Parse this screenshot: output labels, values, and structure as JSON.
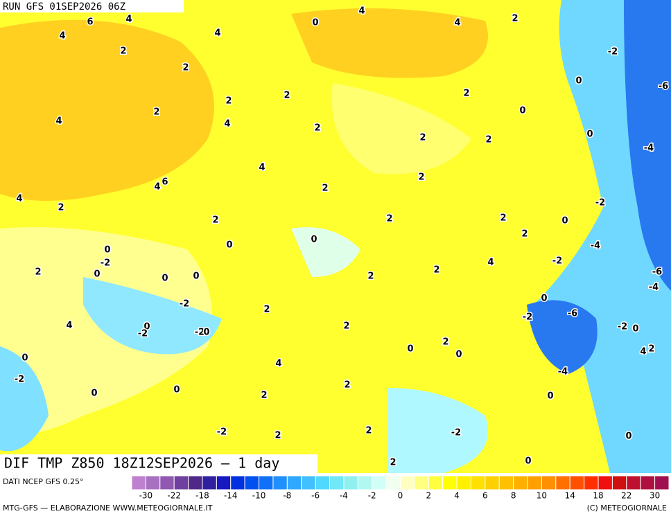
{
  "header": {
    "run": "RUN GFS 01SEP2026 06Z",
    "field": "DIF TMP Z850 18Z12SEP2026 — 1 day"
  },
  "map": {
    "contour_labels": [
      "6",
      "4",
      "4",
      "4",
      "0",
      "4",
      "4",
      "2",
      "2",
      "2",
      "-2",
      "0",
      "-6",
      "2",
      "2",
      "2",
      "2",
      "0",
      "4",
      "4",
      "2",
      "0",
      "2",
      "2",
      "-4",
      "4",
      "2",
      "6",
      "4",
      "2",
      "4",
      "2",
      "-2",
      "2",
      "2",
      "2",
      "0",
      "2",
      "0",
      "0",
      "-4",
      "0",
      "-2",
      "-2",
      "4",
      "2",
      "0",
      "2",
      "-6",
      "0",
      "0",
      "2",
      "-4",
      "-2",
      "0",
      "2",
      "-6",
      "-2",
      "-2",
      "0",
      "0",
      "2",
      "-2",
      "-2",
      "0",
      "4",
      "2",
      "0",
      "0",
      "2",
      "4",
      "0",
      "4",
      "-4",
      "-2",
      "2",
      "0",
      "0",
      "2",
      "0",
      "-2",
      "2",
      "2",
      "-2",
      "0",
      "0",
      "2"
    ]
  },
  "colorbar": {
    "source": "DATI NCEP GFS 0.25°",
    "ticks": [
      -30,
      -22,
      -18,
      -14,
      -10,
      -8,
      -6,
      -4,
      -2,
      0,
      2,
      4,
      6,
      8,
      10,
      14,
      18,
      22,
      30
    ],
    "colors": [
      "#c080d0",
      "#a870c0",
      "#9058b0",
      "#7040a0",
      "#502888",
      "#3020a0",
      "#1818c0",
      "#0030e0",
      "#0050f0",
      "#1070f8",
      "#2090ff",
      "#30a8ff",
      "#40c0ff",
      "#50d8ff",
      "#70e8f8",
      "#90f0f0",
      "#b0f8f0",
      "#d0fff8",
      "#f0fff0",
      "#ffffc0",
      "#ffff80",
      "#ffff40",
      "#ffff00",
      "#fff000",
      "#ffe000",
      "#ffd000",
      "#ffc000",
      "#ffb000",
      "#ffa000",
      "#ff9000",
      "#ff7000",
      "#ff5000",
      "#ff3000",
      "#f01010",
      "#d01010",
      "#c01030",
      "#b01040",
      "#a01050"
    ]
  },
  "footer": {
    "credit_left": "MTG-GFS — ELABORAZIONE WWW.METEOGIORNALE.IT",
    "credit_right": "(C) METEOGIORNALE"
  }
}
